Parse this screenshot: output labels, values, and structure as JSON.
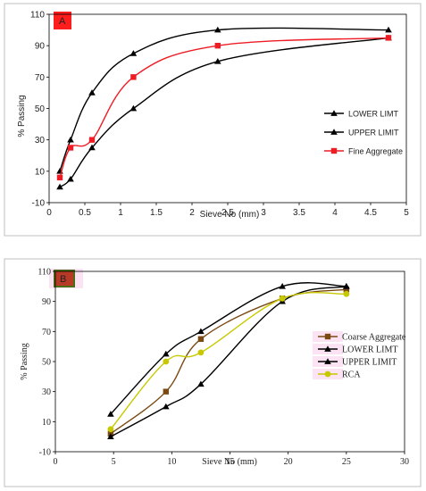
{
  "chart_data": [
    {
      "type": "line",
      "panel_label": "A",
      "xlabel": "Sieve No (mm)",
      "ylabel": "% Passing",
      "xlim": [
        0,
        5
      ],
      "ylim": [
        -10,
        110
      ],
      "xticks": [
        "0",
        "0.5",
        "1",
        "1.5",
        "2",
        "2.5",
        "3",
        "3.5",
        "4",
        "4.5",
        "5"
      ],
      "yticks": [
        "-10",
        "10",
        "30",
        "50",
        "70",
        "90",
        "110"
      ],
      "legend_position": "right",
      "series": [
        {
          "name": "LOWER LIMT",
          "color": "#000000",
          "marker": "triangle",
          "x": [
            0.15,
            0.3,
            0.6,
            1.18,
            2.36,
            4.75
          ],
          "y": [
            0,
            5,
            25,
            50,
            80,
            95
          ]
        },
        {
          "name": "UPPER LIMIT",
          "color": "#000000",
          "marker": "triangle",
          "x": [
            0.15,
            0.3,
            0.6,
            1.18,
            2.36,
            4.75
          ],
          "y": [
            10,
            30,
            60,
            85,
            100,
            100
          ]
        },
        {
          "name": "Fine Aggregate",
          "color": "#ee1c25",
          "marker": "square",
          "x": [
            0.15,
            0.3,
            0.6,
            1.18,
            2.36,
            4.75
          ],
          "y": [
            6,
            25,
            30,
            70,
            90,
            95
          ]
        }
      ]
    },
    {
      "type": "line",
      "panel_label": "B",
      "xlabel": "Sieve No (mm)",
      "ylabel": "% Passing",
      "xlim": [
        0,
        30
      ],
      "ylim": [
        -10,
        110
      ],
      "xticks": [
        "0",
        "5",
        "10",
        "15",
        "20",
        "25",
        "30"
      ],
      "yticks": [
        "-10",
        "10",
        "30",
        "50",
        "70",
        "90",
        "110"
      ],
      "legend_position": "right",
      "series": [
        {
          "name": "Coarse Aggregate",
          "color": "#7b4a12",
          "marker": "square",
          "x": [
            4.75,
            9.5,
            12.5,
            19.5,
            25
          ],
          "y": [
            2,
            30,
            65,
            92,
            98
          ]
        },
        {
          "name": "LOWER LIMT",
          "color": "#000000",
          "marker": "triangle",
          "x": [
            4.75,
            9.5,
            12.5,
            19.5,
            25
          ],
          "y": [
            0,
            20,
            35,
            90,
            100
          ]
        },
        {
          "name": "UPPER LIMIT",
          "color": "#000000",
          "marker": "triangle",
          "x": [
            4.75,
            9.5,
            12.5,
            19.5,
            25
          ],
          "y": [
            15,
            55,
            70,
            100,
            100
          ]
        },
        {
          "name": "RCA",
          "color": "#c8c800",
          "marker": "circle",
          "x": [
            4.75,
            9.5,
            12.5,
            19.5,
            25
          ],
          "y": [
            5,
            50,
            56,
            92,
            95
          ]
        }
      ]
    }
  ]
}
